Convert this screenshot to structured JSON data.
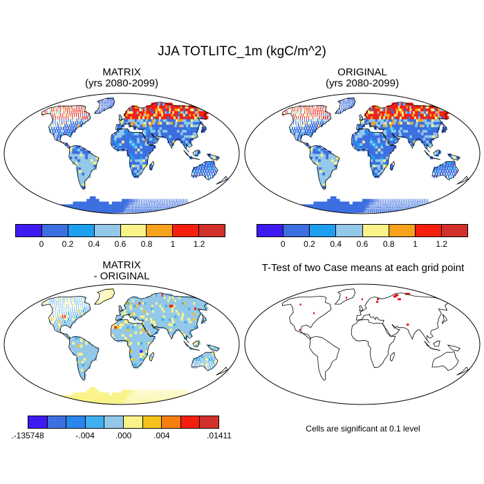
{
  "figure": {
    "title": "JJA TOTLITC_1m (kgC/m^2)"
  },
  "panels": [
    {
      "id": "matrix",
      "title": "MATRIX\n(yrs 2080-2099)"
    },
    {
      "id": "original",
      "title": "ORIGINAL\n(yrs 2080-2099)"
    },
    {
      "id": "difference",
      "title": "MATRIX\n- ORIGINAL"
    },
    {
      "id": "ttest",
      "title": "T-Test of two Case means at each grid point",
      "note": "Cells are significant at 0.1 level"
    }
  ],
  "colorbars": {
    "main": {
      "colors": [
        "#3f1bf3",
        "#3d6fe0",
        "#1e9ff0",
        "#93c8e8",
        "#f9f38a",
        "#f7a21d",
        "#f51f0f",
        "#d2302c"
      ],
      "labels": [
        "0",
        "0.2",
        "0.4",
        "0.6",
        "0.8",
        "1",
        "1.2"
      ]
    },
    "diff": {
      "colors": [
        "#3f1bf3",
        "#3d6fe0",
        "#2a86ea",
        "#3fb0f0",
        "#93c8e8",
        "#f9f38a",
        "#f7c21d",
        "#f77f10",
        "#f51f0f",
        "#d2302c"
      ],
      "labels": [
        ".-135748",
        "-.004",
        ".000",
        ".004",
        ".01411"
      ]
    }
  },
  "colors": {
    "ocean": "#ffffff",
    "coast": "#000000",
    "land_base": "#3d6fe0",
    "land_mid": "#93c8e8",
    "diff_base": "#93c8e8",
    "antarctica_diff": "#f9f38a",
    "significant": "#e01010"
  }
}
